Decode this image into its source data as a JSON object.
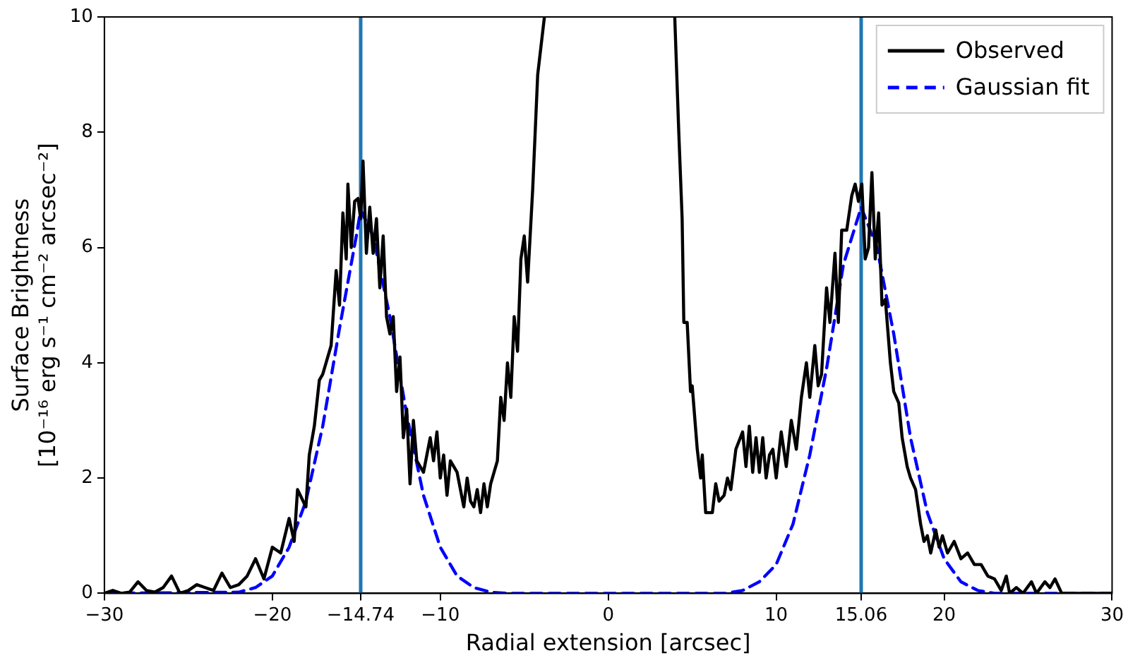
{
  "chart_data": {
    "type": "line",
    "xlabel": "Radial extension [arcsec]",
    "ylabel": "Surface Brightness\n[10⁻¹⁶ erg s⁻¹ cm⁻² arcsec⁻²]",
    "xlim": [
      -30,
      30
    ],
    "ylim": [
      0,
      10
    ],
    "xticks": [
      -30,
      -20,
      -14.74,
      -10,
      0,
      10,
      15.06,
      20,
      30
    ],
    "yticks": [
      0,
      2,
      4,
      6,
      8,
      10
    ],
    "grid": false,
    "legend": "top right",
    "marker": "none",
    "series": [
      {
        "name": "Observed",
        "color": "#000000",
        "line_style": "solid",
        "x": [
          -30,
          -29.5,
          -29,
          -28.5,
          -28,
          -27.5,
          -27,
          -26.5,
          -26,
          -25.5,
          -25,
          -24.5,
          -24,
          -23.5,
          -23,
          -22.5,
          -22,
          -21.5,
          -21,
          -20.5,
          -20,
          -19.5,
          -19,
          -18.7,
          -18.5,
          -18,
          -17.8,
          -17.5,
          -17.2,
          -17,
          -16.5,
          -16.2,
          -16,
          -15.8,
          -15.6,
          -15.5,
          -15.3,
          -15.1,
          -14.9,
          -14.74,
          -14.6,
          -14.4,
          -14.2,
          -14,
          -13.8,
          -13.6,
          -13.4,
          -13.2,
          -13,
          -12.8,
          -12.6,
          -12.4,
          -12.2,
          -12,
          -11.8,
          -11.6,
          -11.4,
          -11,
          -10.6,
          -10.4,
          -10.2,
          -10,
          -9.8,
          -9.6,
          -9.4,
          -9,
          -8.6,
          -8.4,
          -8.2,
          -8,
          -7.8,
          -7.6,
          -7.4,
          -7.2,
          -7,
          -6.6,
          -6.4,
          -6.2,
          -6,
          -5.8,
          -5.6,
          -5.4,
          -5.2,
          -5,
          -4.8,
          -4.5,
          -4.2,
          -3.8,
          0,
          3.96,
          4.2,
          4.4,
          4.5,
          4.7,
          4.9,
          5,
          5.3,
          5.5,
          5.6,
          5.8,
          6.2,
          6.4,
          6.6,
          6.9,
          7.1,
          7.3,
          7.6,
          8,
          8.2,
          8.4,
          8.6,
          8.8,
          9,
          9.2,
          9.4,
          9.6,
          9.8,
          10,
          10.3,
          10.6,
          10.9,
          11.2,
          11.5,
          11.8,
          12,
          12.3,
          12.5,
          12.7,
          13,
          13.2,
          13.5,
          13.7,
          13.9,
          14.2,
          14.5,
          14.7,
          14.9,
          15.1,
          15.3,
          15.5,
          15.7,
          15.9,
          16.1,
          16.3,
          16.5,
          16.8,
          17,
          17.3,
          17.5,
          17.8,
          18,
          18.3,
          18.6,
          18.8,
          19,
          19.2,
          19.5,
          19.7,
          19.9,
          20.2,
          20.6,
          21,
          21.4,
          21.8,
          22.2,
          22.6,
          23,
          23.4,
          23.7,
          23.9,
          24.3,
          24.7,
          25.2,
          25.5,
          26,
          26.3,
          26.6,
          27,
          30
        ],
        "values": [
          0,
          0.05,
          0,
          0.02,
          0.2,
          0.05,
          0.02,
          0.1,
          0.3,
          0,
          0.05,
          0.15,
          0.1,
          0.05,
          0.35,
          0.1,
          0.15,
          0.3,
          0.6,
          0.25,
          0.8,
          0.7,
          1.3,
          0.9,
          1.8,
          1.5,
          2.4,
          2.9,
          3.7,
          3.8,
          4.3,
          5.6,
          5,
          6.6,
          5.8,
          7.1,
          6,
          6.8,
          6.85,
          6.5,
          7.5,
          5.9,
          6.7,
          5.9,
          6.5,
          5.3,
          6.2,
          4.8,
          4.5,
          4.8,
          3.5,
          4.1,
          2.7,
          3.2,
          1.9,
          3,
          2.3,
          2.1,
          2.7,
          2.3,
          2.8,
          2,
          2.4,
          1.7,
          2.3,
          2.1,
          1.5,
          2,
          1.6,
          1.5,
          1.8,
          1.4,
          1.9,
          1.5,
          1.9,
          2.3,
          3.4,
          3,
          4,
          3.4,
          4.8,
          4.2,
          5.8,
          6.2,
          5.4,
          7,
          9,
          10,
          null,
          10,
          8,
          6.5,
          4.7,
          4.7,
          3.5,
          3.6,
          2.5,
          2,
          2.4,
          1.4,
          1.4,
          1.9,
          1.6,
          1.7,
          2,
          1.8,
          2.5,
          2.8,
          2.2,
          2.9,
          2.1,
          2.7,
          2.1,
          2.7,
          2,
          2.4,
          2.5,
          2,
          2.8,
          2.2,
          3,
          2.5,
          3.4,
          4,
          3.4,
          4.3,
          3.6,
          3.8,
          5.3,
          4.7,
          5.9,
          4.7,
          6.3,
          6.3,
          6.9,
          7.1,
          6.8,
          7.1,
          5.8,
          6,
          7.3,
          5.8,
          6.6,
          5,
          5.1,
          4,
          3.5,
          3.3,
          2.7,
          2.2,
          2,
          1.8,
          1.2,
          0.9,
          1,
          0.7,
          1.1,
          0.8,
          1,
          0.7,
          0.9,
          0.6,
          0.7,
          0.5,
          0.5,
          0.3,
          0.25,
          0.05,
          0.3,
          0,
          0.1,
          0,
          0.2,
          0,
          0.2,
          0.1,
          0.25,
          0,
          0
        ]
      },
      {
        "name": "Gaussian fit",
        "color": "#0000ff",
        "line_style": "dashed",
        "x": [
          -30,
          -22,
          -21,
          -20,
          -19,
          -18,
          -17,
          -16,
          -15,
          -14.74,
          -14,
          -13,
          -12,
          -11,
          -10,
          -9,
          -8,
          -7,
          -6,
          7,
          8,
          9,
          10,
          11,
          12,
          13,
          14,
          15.06,
          16,
          17,
          18,
          19,
          20,
          21,
          22,
          23,
          30
        ],
        "values": [
          0,
          0.02,
          0.1,
          0.3,
          0.8,
          1.6,
          2.9,
          4.6,
          6.2,
          6.65,
          6.2,
          4.8,
          3.1,
          1.7,
          0.8,
          0.3,
          0.1,
          0.02,
          0,
          0,
          0.05,
          0.2,
          0.5,
          1.2,
          2.4,
          3.9,
          5.7,
          6.7,
          6,
          4.5,
          2.7,
          1.4,
          0.6,
          0.2,
          0.05,
          0,
          0
        ]
      }
    ],
    "ref_lines": [
      {
        "axis": "x",
        "value": -14.74,
        "color": "#1f77b4"
      },
      {
        "axis": "x",
        "value": 15.06,
        "color": "#1f77b4"
      }
    ]
  }
}
